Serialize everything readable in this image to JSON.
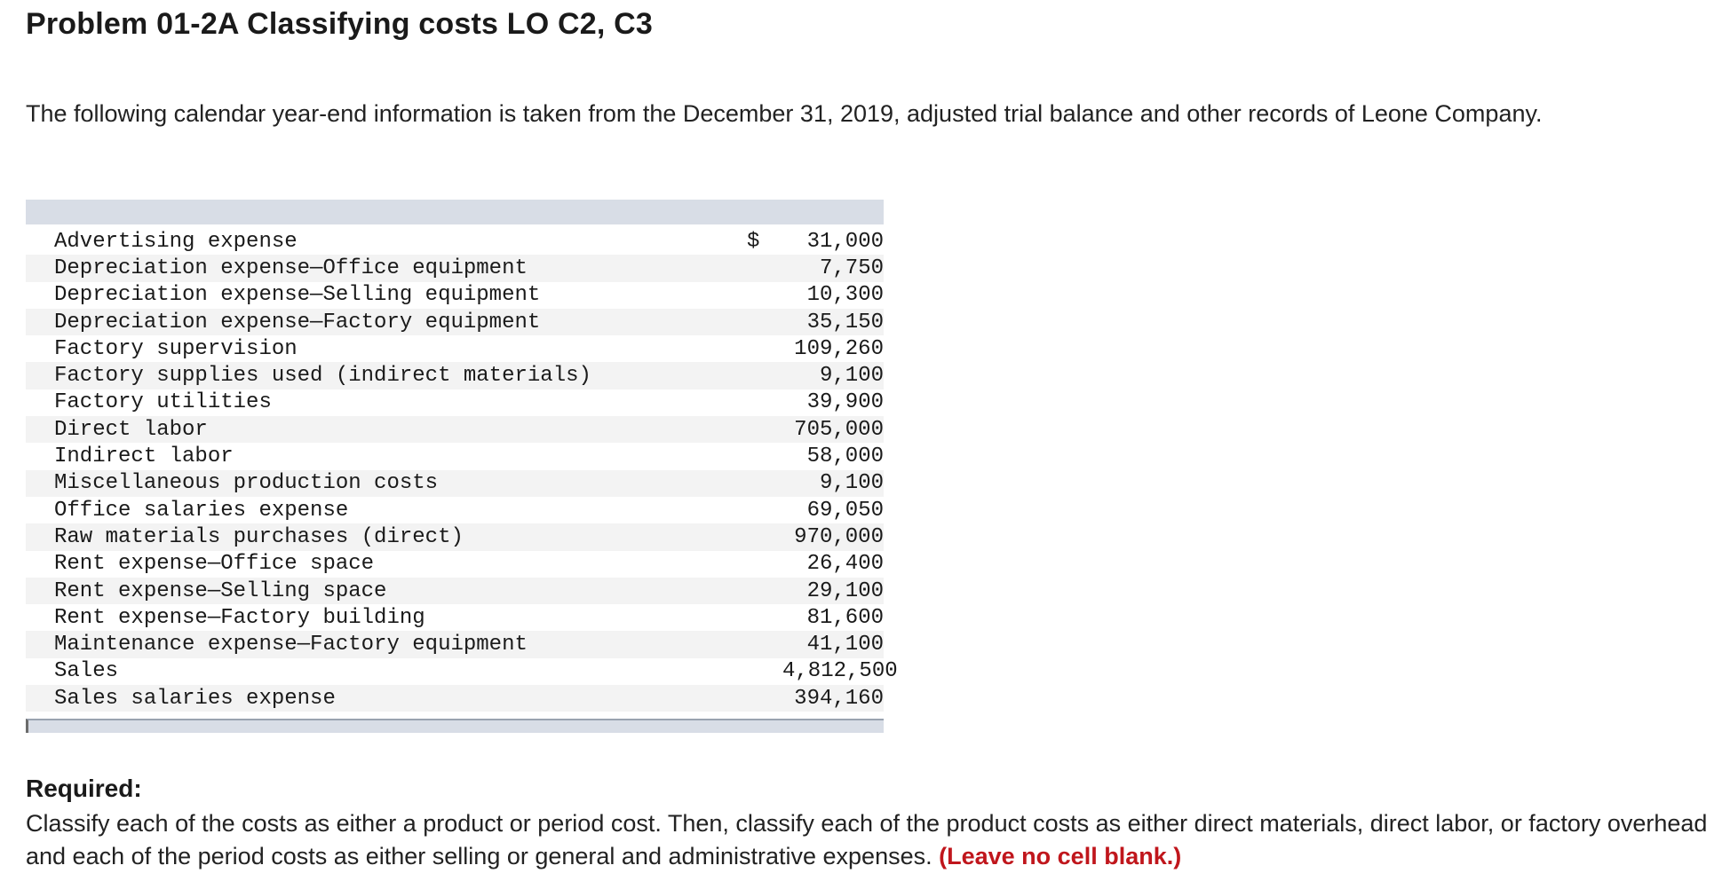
{
  "title": "Problem 01-2A Classifying costs LO C2, C3",
  "intro": "The following calendar year-end information is taken from the December 31, 2019, adjusted trial balance and other records of Leone Company.",
  "table": {
    "currency_symbol": "$",
    "rows": [
      {
        "label": "Advertising expense",
        "amount": "31,000"
      },
      {
        "label": "Depreciation expense—Office equipment",
        "amount": "7,750"
      },
      {
        "label": "Depreciation expense—Selling equipment",
        "amount": "10,300"
      },
      {
        "label": "Depreciation expense—Factory equipment",
        "amount": "35,150"
      },
      {
        "label": "Factory supervision",
        "amount": "109,260"
      },
      {
        "label": "Factory supplies used (indirect materials)",
        "amount": "9,100"
      },
      {
        "label": "Factory utilities",
        "amount": "39,900"
      },
      {
        "label": "Direct labor",
        "amount": "705,000"
      },
      {
        "label": "Indirect labor",
        "amount": "58,000"
      },
      {
        "label": "Miscellaneous production costs",
        "amount": "9,100"
      },
      {
        "label": "Office salaries expense",
        "amount": "69,050"
      },
      {
        "label": "Raw materials purchases (direct)",
        "amount": "970,000"
      },
      {
        "label": "Rent expense—Office space",
        "amount": "26,400"
      },
      {
        "label": "Rent expense—Selling space",
        "amount": "29,100"
      },
      {
        "label": "Rent expense—Factory building",
        "amount": "81,600"
      },
      {
        "label": "Maintenance expense—Factory equipment",
        "amount": "41,100"
      },
      {
        "label": "Sales",
        "amount": "4,812,500"
      },
      {
        "label": "Sales salaries expense",
        "amount": "394,160"
      }
    ]
  },
  "required": {
    "heading": "Required:",
    "text": "Classify each of the costs as either a product or period cost. Then, classify each of the product costs as either direct materials, direct labor, or factory overhead and each of the period costs as either selling or general and administrative expenses.",
    "note": "(Leave no cell blank.)"
  },
  "colors": {
    "table_header_band": "#d8dde6",
    "row_stripe": "#f3f3f3",
    "note_red": "#c0161c"
  }
}
